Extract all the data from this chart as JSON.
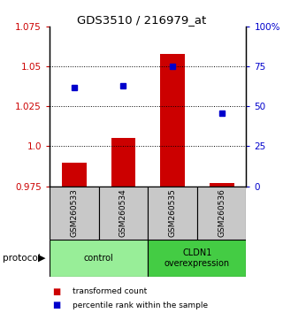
{
  "title": "GDS3510 / 216979_at",
  "samples": [
    "GSM260533",
    "GSM260534",
    "GSM260535",
    "GSM260536"
  ],
  "red_values": [
    0.99,
    1.005,
    1.058,
    0.977
  ],
  "blue_values": [
    62,
    63,
    75,
    46
  ],
  "ylim_left": [
    0.975,
    1.075
  ],
  "ylim_right": [
    0,
    100
  ],
  "yticks_left": [
    0.975,
    1.0,
    1.025,
    1.05,
    1.075
  ],
  "yticks_right": [
    0,
    25,
    50,
    75,
    100
  ],
  "ytick_labels_right": [
    "0",
    "25",
    "50",
    "75",
    "100%"
  ],
  "hlines": [
    1.0,
    1.025,
    1.05
  ],
  "groups": [
    {
      "label": "control",
      "samples": [
        0,
        1
      ],
      "color": "#98ee98"
    },
    {
      "label": "CLDN1\noverexpression",
      "samples": [
        2,
        3
      ],
      "color": "#44cc44"
    }
  ],
  "bar_color": "#cc0000",
  "dot_color": "#0000cc",
  "bar_width": 0.5,
  "legend_labels": [
    "transformed count",
    "percentile rank within the sample"
  ],
  "legend_colors": [
    "#cc0000",
    "#0000cc"
  ],
  "protocol_label": "protocol",
  "bg_color": "#ffffff",
  "sample_box_color": "#c8c8c8",
  "title_fontsize": 9.5
}
